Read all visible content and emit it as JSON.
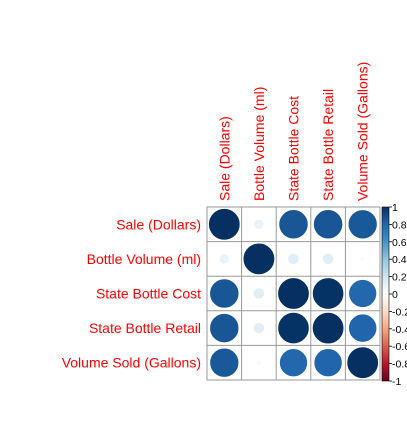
{
  "chart_data": {
    "type": "heatmap",
    "variables": [
      "Sale (Dollars)",
      "Bottle Volume (ml)",
      "State Bottle Cost",
      "State Bottle Retail",
      "Volume Sold (Gallons)"
    ],
    "matrix": [
      [
        1.0,
        0.1,
        0.86,
        0.86,
        0.85
      ],
      [
        0.1,
        1.0,
        0.13,
        0.13,
        0.03
      ],
      [
        0.86,
        0.13,
        1.0,
        0.99,
        0.79
      ],
      [
        0.86,
        0.13,
        0.99,
        1.0,
        0.8
      ],
      [
        0.85,
        0.03,
        0.79,
        0.8,
        1.0
      ]
    ],
    "colorbar": {
      "range": [
        -1,
        1
      ],
      "ticks": [
        "1",
        "0.8",
        "0.6",
        "0.4",
        "0.2",
        "0",
        "-0.2",
        "-0.4",
        "-0.6",
        "-0.8",
        "-1"
      ]
    },
    "colors": {
      "label": "#ff0000",
      "grid": "#999999",
      "circle_stroke": "#ffffff",
      "positive": "#053061",
      "negative": "#67001f"
    }
  }
}
